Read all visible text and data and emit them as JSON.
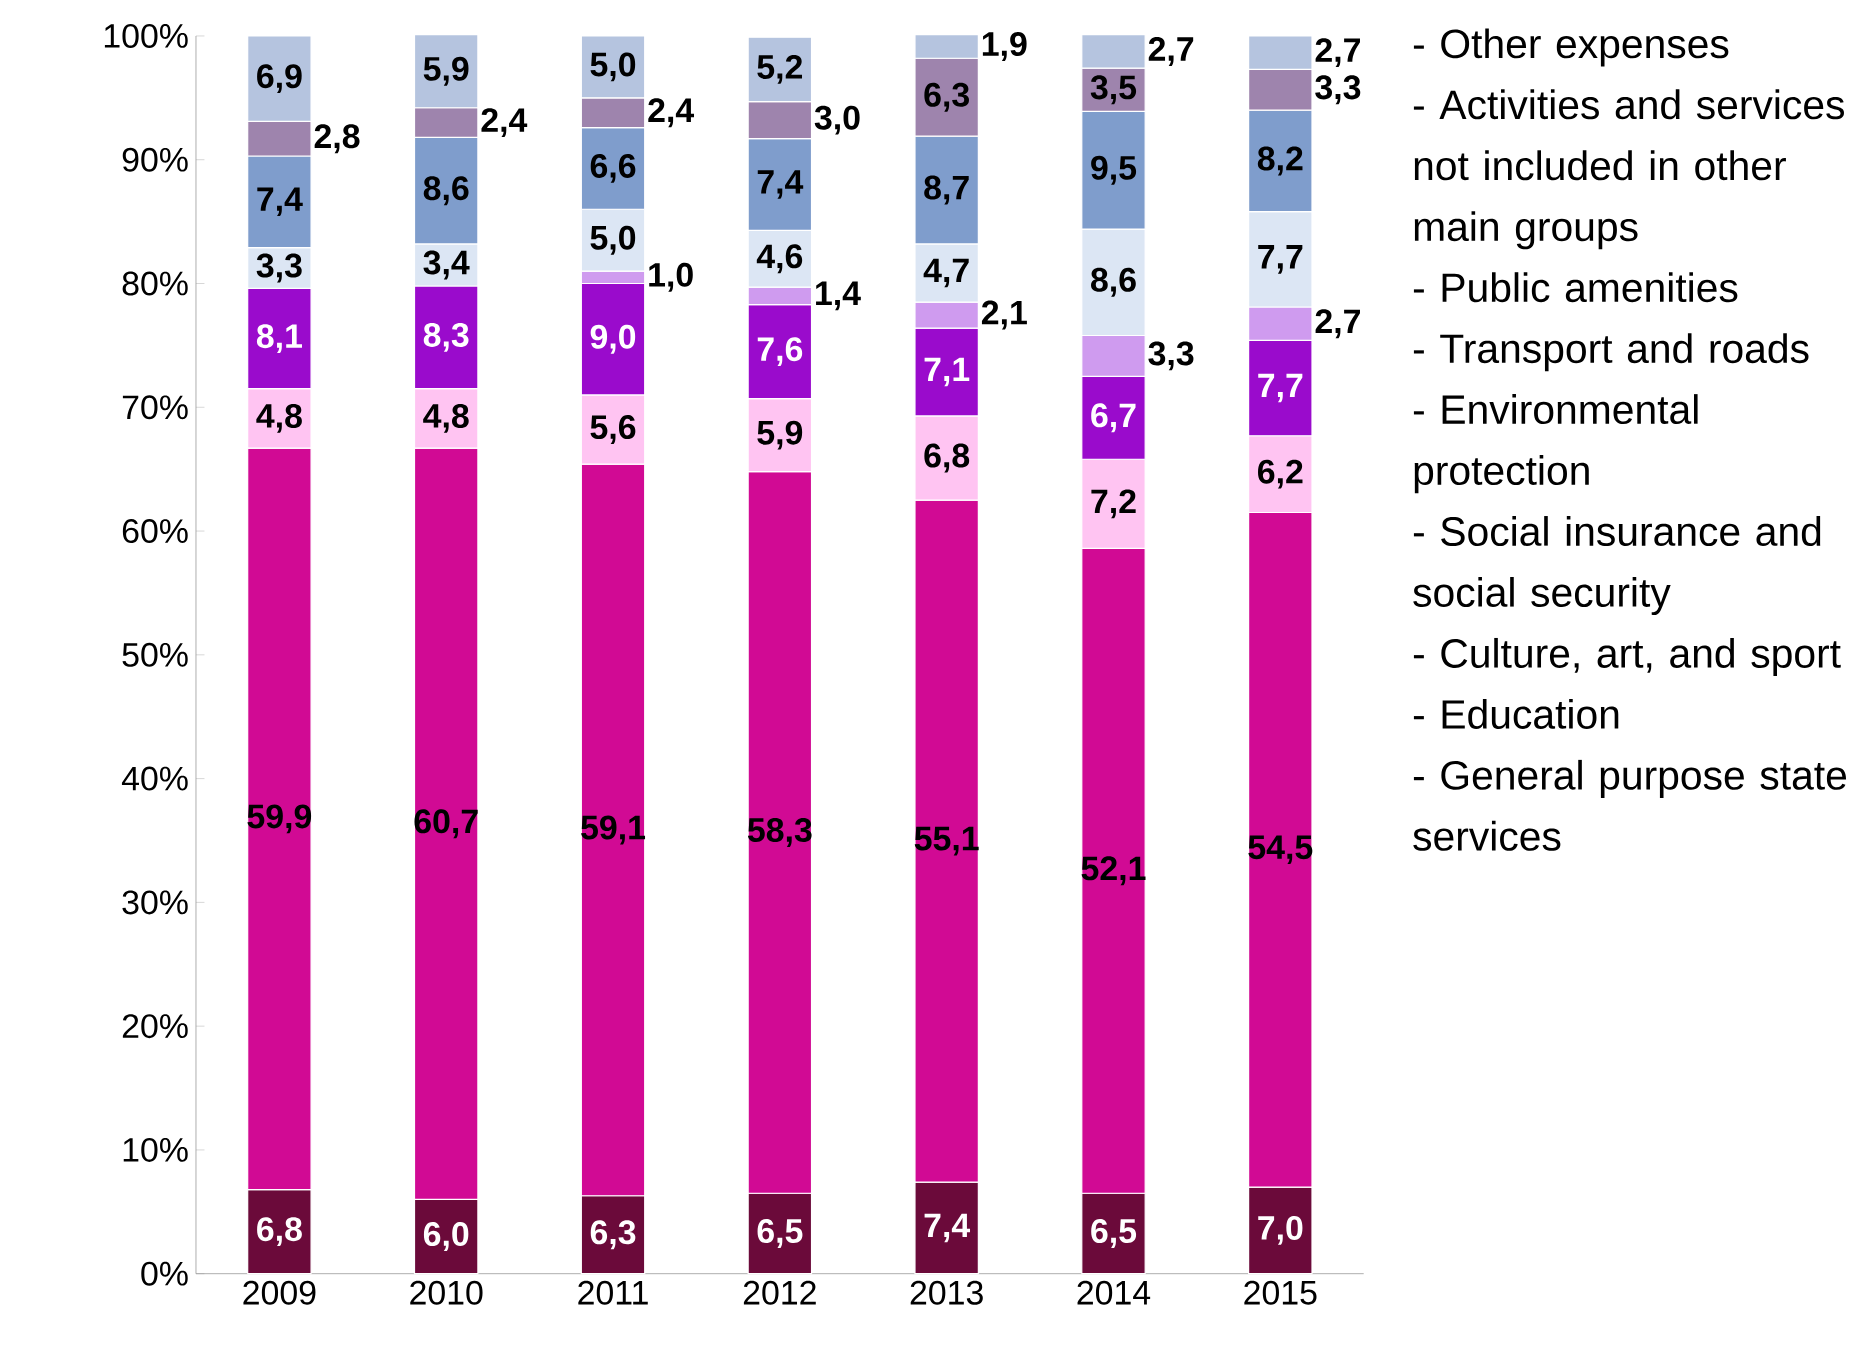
{
  "chart_data": {
    "type": "bar",
    "stacked": true,
    "categories": [
      "2009",
      "2010",
      "2011",
      "2012",
      "2013",
      "2014",
      "2015"
    ],
    "ylim": [
      0,
      100
    ],
    "yticks": [
      {
        "value": 0,
        "label": "0%"
      },
      {
        "value": 10,
        "label": "10%"
      },
      {
        "value": 20,
        "label": "20%"
      },
      {
        "value": 30,
        "label": "30%"
      },
      {
        "value": 40,
        "label": "40%"
      },
      {
        "value": 50,
        "label": "50%"
      },
      {
        "value": 60,
        "label": "60%"
      },
      {
        "value": 70,
        "label": "70%"
      },
      {
        "value": 80,
        "label": "80%"
      },
      {
        "value": 90,
        "label": "90%"
      },
      {
        "value": 100,
        "label": "100%"
      }
    ],
    "grid": false,
    "legend": "right",
    "data_labels": true,
    "series": [
      {
        "name": "- General purpose state services",
        "color": "#6b0a3a",
        "values": [
          6.8,
          6.0,
          6.3,
          6.5,
          7.4,
          6.5,
          7.0
        ],
        "value_labels": [
          "6,8",
          "6,0",
          "6,3",
          "6,5",
          "7,4",
          "6,5",
          "7,0"
        ]
      },
      {
        "name": "- Education",
        "color": "#d10a94",
        "values": [
          59.9,
          60.7,
          59.1,
          58.3,
          55.1,
          52.1,
          54.5
        ],
        "value_labels": [
          "59,9",
          "60,7",
          "59,1",
          "58,3",
          "55,1",
          "52,1",
          "54,5"
        ]
      },
      {
        "name": "- Culture, art, and sport",
        "color": "#ffc4f2",
        "values": [
          4.8,
          4.8,
          5.6,
          5.9,
          6.8,
          7.2,
          6.2
        ],
        "value_labels": [
          "4,8",
          "4,8",
          "5,6",
          "5,9",
          "6,8",
          "7,2",
          "6,2"
        ]
      },
      {
        "name": "- Social insurance and social security",
        "color": "#9a0bcc",
        "values": [
          8.1,
          8.3,
          9.0,
          7.6,
          7.1,
          6.7,
          7.7
        ],
        "value_labels": [
          "8,1",
          "8,3",
          "9,0",
          "7,6",
          "7,1",
          "6,7",
          "7,7"
        ]
      },
      {
        "name": "- Environmental protection",
        "color": "#cf9bef",
        "values": [
          null,
          null,
          1.0,
          1.4,
          2.1,
          3.3,
          2.7
        ],
        "value_labels": [
          null,
          null,
          "1,0",
          "1,4",
          "2,1",
          "3,3",
          "2,7"
        ]
      },
      {
        "name": "- Transport and roads",
        "color": "#dce6f4",
        "values": [
          3.3,
          3.4,
          5.0,
          4.6,
          4.7,
          8.6,
          7.7
        ],
        "value_labels": [
          "3,3",
          "3,4",
          "5,0",
          "4,6",
          "4,7",
          "8,6",
          "7,7"
        ]
      },
      {
        "name": "- Public amenities",
        "color": "#7f9dcc",
        "values": [
          7.4,
          8.6,
          6.6,
          7.4,
          8.7,
          9.5,
          8.2
        ],
        "value_labels": [
          "7,4",
          "8,6",
          "6,6",
          "7,4",
          "8,7",
          "9,5",
          "8,2"
        ]
      },
      {
        "name": "- Activities and services not included in other main groups",
        "color": "#9e84ad",
        "values": [
          2.8,
          2.4,
          2.4,
          3.0,
          6.3,
          3.5,
          3.3
        ],
        "value_labels": [
          "2,8",
          "2,4",
          "2,4",
          "3,0",
          "6,3",
          "3,5",
          "3,3"
        ]
      },
      {
        "name": "- Other expenses",
        "color": "#b5c4df",
        "values": [
          6.9,
          5.9,
          5.0,
          5.2,
          1.9,
          2.7,
          2.7
        ],
        "value_labels": [
          "6,9",
          "5,9",
          "5,0",
          "5,2",
          "1,9",
          "2,7",
          "2,7"
        ]
      }
    ]
  }
}
